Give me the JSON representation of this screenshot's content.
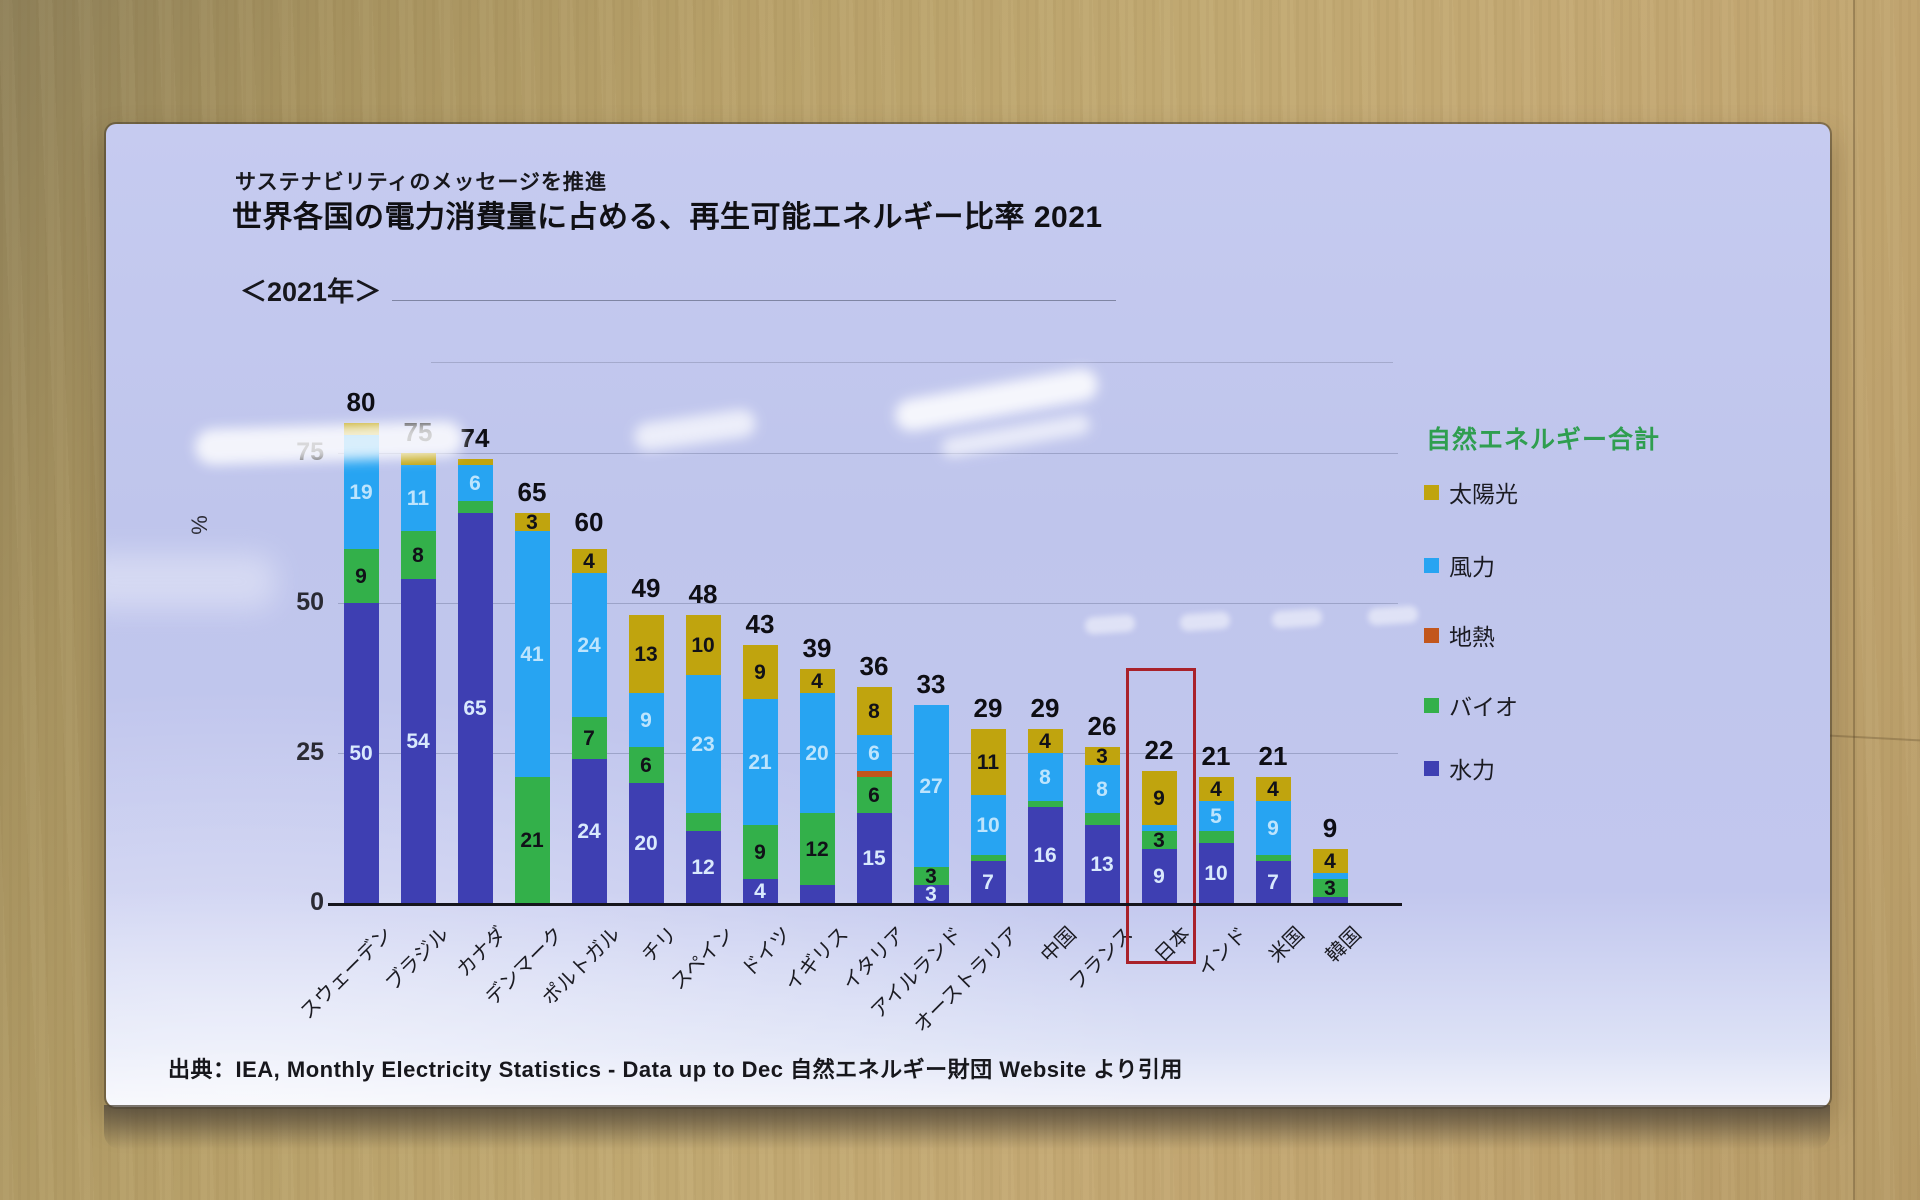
{
  "slide": {
    "kicker": "サステナビリティのメッセージを推進",
    "title": "世界各国の電力消費量に占める、再生可能エネルギー比率 2021",
    "year_label": "＜2021年＞",
    "source": "出典：IEA, Monthly Electricity Statistics - Data up to Dec 自然エネルギー財団 Website より引用"
  },
  "chart_data": {
    "type": "bar",
    "stacked": true,
    "title": "世界各国の電力消費量に占める、再生可能エネルギー比率 2021",
    "xlabel": "",
    "ylabel": "%",
    "ylim": [
      0,
      100
    ],
    "yticks": [
      0,
      25,
      50,
      75
    ],
    "grid": true,
    "legend_position": "right",
    "segment_order_bottom_to_top": [
      "hydro",
      "bio",
      "geothermal",
      "wind",
      "solar"
    ],
    "colors": {
      "hydro": "#3e3fb2",
      "bio": "#33b04a",
      "geothermal": "#c2561c",
      "wind": "#27a4f2",
      "solar": "#c0a40e"
    },
    "label_colors": {
      "hydro": "#d9e9fd",
      "bio": "#111118",
      "geothermal": "#111118",
      "wind": "#bde4fd",
      "solar": "#111118"
    },
    "legend": {
      "title": "自然エネルギー合計",
      "items": [
        {
          "key": "solar",
          "label": "太陽光",
          "color": "#c0a40e"
        },
        {
          "key": "wind",
          "label": "風力",
          "color": "#27a4f2"
        },
        {
          "key": "geothermal",
          "label": "地熱",
          "color": "#c2561c"
        },
        {
          "key": "bio",
          "label": "バイオ",
          "color": "#33b04a"
        },
        {
          "key": "hydro",
          "label": "水力",
          "color": "#3e3fb2"
        }
      ]
    },
    "categories": [
      "スウェーデン",
      "ブラジル",
      "カナダ",
      "デンマーク",
      "ポルトガル",
      "チリ",
      "スペイン",
      "ドイツ",
      "イギリス",
      "イタリア",
      "アイルランド",
      "オーストラリア",
      "中国",
      "フランス",
      "日本",
      "インド",
      "米国",
      "韓国"
    ],
    "totals": [
      80,
      75,
      74,
      65,
      60,
      49,
      48,
      43,
      39,
      36,
      33,
      29,
      29,
      26,
      22,
      21,
      21,
      9
    ],
    "bars": [
      {
        "country": "スウェーデン",
        "total": 80,
        "segments": [
          {
            "key": "hydro",
            "value": 50,
            "label": "50"
          },
          {
            "key": "bio",
            "value": 9,
            "label": "9"
          },
          {
            "key": "wind",
            "value": 19,
            "label": "19"
          },
          {
            "key": "solar",
            "value": 2,
            "label": ""
          }
        ]
      },
      {
        "country": "ブラジル",
        "total": 75,
        "segments": [
          {
            "key": "hydro",
            "value": 54,
            "label": "54"
          },
          {
            "key": "bio",
            "value": 8,
            "label": "8"
          },
          {
            "key": "wind",
            "value": 11,
            "label": "11"
          },
          {
            "key": "solar",
            "value": 2,
            "label": ""
          }
        ]
      },
      {
        "country": "カナダ",
        "total": 74,
        "segments": [
          {
            "key": "hydro",
            "value": 65,
            "label": "65"
          },
          {
            "key": "bio",
            "value": 2,
            "label": ""
          },
          {
            "key": "wind",
            "value": 6,
            "label": "6"
          },
          {
            "key": "solar",
            "value": 1,
            "label": ""
          }
        ]
      },
      {
        "country": "デンマーク",
        "total": 65,
        "segments": [
          {
            "key": "bio",
            "value": 21,
            "label": "21"
          },
          {
            "key": "wind",
            "value": 41,
            "label": "41"
          },
          {
            "key": "solar",
            "value": 3,
            "label": "3"
          }
        ]
      },
      {
        "country": "ポルトガル",
        "total": 60,
        "segments": [
          {
            "key": "hydro",
            "value": 24,
            "label": "24"
          },
          {
            "key": "bio",
            "value": 7,
            "label": "7"
          },
          {
            "key": "wind",
            "value": 24,
            "label": "24"
          },
          {
            "key": "solar",
            "value": 4,
            "label": "4"
          }
        ]
      },
      {
        "country": "チリ",
        "total": 49,
        "segments": [
          {
            "key": "hydro",
            "value": 20,
            "label": "20"
          },
          {
            "key": "bio",
            "value": 6,
            "label": "6"
          },
          {
            "key": "wind",
            "value": 9,
            "label": "9"
          },
          {
            "key": "solar",
            "value": 13,
            "label": "13"
          }
        ]
      },
      {
        "country": "スペイン",
        "total": 48,
        "segments": [
          {
            "key": "hydro",
            "value": 12,
            "label": "12"
          },
          {
            "key": "bio",
            "value": 3,
            "label": ""
          },
          {
            "key": "wind",
            "value": 23,
            "label": "23"
          },
          {
            "key": "solar",
            "value": 10,
            "label": "10"
          }
        ]
      },
      {
        "country": "ドイツ",
        "total": 43,
        "segments": [
          {
            "key": "hydro",
            "value": 4,
            "label": "4"
          },
          {
            "key": "bio",
            "value": 9,
            "label": "9"
          },
          {
            "key": "wind",
            "value": 21,
            "label": "21"
          },
          {
            "key": "solar",
            "value": 9,
            "label": "9"
          }
        ]
      },
      {
        "country": "イギリス",
        "total": 39,
        "segments": [
          {
            "key": "hydro",
            "value": 3,
            "label": ""
          },
          {
            "key": "bio",
            "value": 12,
            "label": "12"
          },
          {
            "key": "wind",
            "value": 20,
            "label": "20"
          },
          {
            "key": "solar",
            "value": 4,
            "label": "4"
          }
        ]
      },
      {
        "country": "イタリア",
        "total": 36,
        "segments": [
          {
            "key": "hydro",
            "value": 15,
            "label": "15"
          },
          {
            "key": "bio",
            "value": 6,
            "label": "6"
          },
          {
            "key": "geothermal",
            "value": 1,
            "label": ""
          },
          {
            "key": "wind",
            "value": 6,
            "label": "6"
          },
          {
            "key": "solar",
            "value": 8,
            "label": "8"
          }
        ]
      },
      {
        "country": "アイルランド",
        "total": 33,
        "segments": [
          {
            "key": "hydro",
            "value": 3,
            "label": "3"
          },
          {
            "key": "bio",
            "value": 3,
            "label": "3"
          },
          {
            "key": "wind",
            "value": 27,
            "label": "27"
          }
        ]
      },
      {
        "country": "オーストラリア",
        "total": 29,
        "segments": [
          {
            "key": "hydro",
            "value": 7,
            "label": "7"
          },
          {
            "key": "bio",
            "value": 1,
            "label": ""
          },
          {
            "key": "wind",
            "value": 10,
            "label": "10"
          },
          {
            "key": "solar",
            "value": 11,
            "label": "11"
          }
        ]
      },
      {
        "country": "中国",
        "total": 29,
        "segments": [
          {
            "key": "hydro",
            "value": 16,
            "label": "16"
          },
          {
            "key": "bio",
            "value": 1,
            "label": ""
          },
          {
            "key": "wind",
            "value": 8,
            "label": "8"
          },
          {
            "key": "solar",
            "value": 4,
            "label": "4"
          }
        ]
      },
      {
        "country": "フランス",
        "total": 26,
        "segments": [
          {
            "key": "hydro",
            "value": 13,
            "label": "13"
          },
          {
            "key": "bio",
            "value": 2,
            "label": ""
          },
          {
            "key": "wind",
            "value": 8,
            "label": "8"
          },
          {
            "key": "solar",
            "value": 3,
            "label": "3"
          }
        ]
      },
      {
        "country": "日本",
        "total": 22,
        "segments": [
          {
            "key": "hydro",
            "value": 9,
            "label": "9"
          },
          {
            "key": "bio",
            "value": 3,
            "label": "3"
          },
          {
            "key": "wind",
            "value": 1,
            "label": ""
          },
          {
            "key": "solar",
            "value": 9,
            "label": "9"
          }
        ]
      },
      {
        "country": "インド",
        "total": 21,
        "segments": [
          {
            "key": "hydro",
            "value": 10,
            "label": "10"
          },
          {
            "key": "bio",
            "value": 2,
            "label": ""
          },
          {
            "key": "wind",
            "value": 5,
            "label": "5"
          },
          {
            "key": "solar",
            "value": 4,
            "label": "4"
          }
        ]
      },
      {
        "country": "米国",
        "total": 21,
        "segments": [
          {
            "key": "hydro",
            "value": 7,
            "label": "7"
          },
          {
            "key": "bio",
            "value": 1,
            "label": ""
          },
          {
            "key": "wind",
            "value": 9,
            "label": "9"
          },
          {
            "key": "solar",
            "value": 4,
            "label": "4"
          }
        ]
      },
      {
        "country": "韓国",
        "total": 9,
        "segments": [
          {
            "key": "hydro",
            "value": 1,
            "label": ""
          },
          {
            "key": "bio",
            "value": 3,
            "label": "3"
          },
          {
            "key": "wind",
            "value": 1,
            "label": ""
          },
          {
            "key": "solar",
            "value": 4,
            "label": "4"
          }
        ]
      }
    ],
    "highlight": {
      "country": "日本",
      "color": "#a9212a"
    }
  }
}
